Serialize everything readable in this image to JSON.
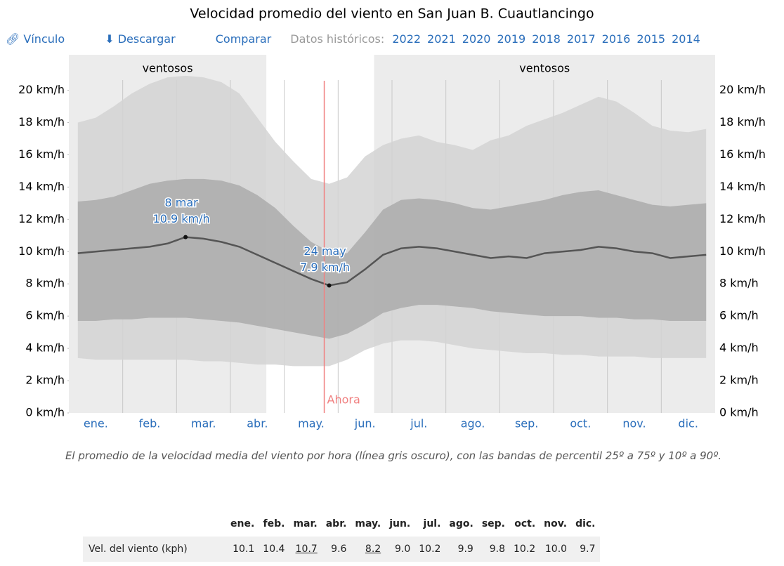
{
  "header": {
    "links": [
      "Vínculo",
      "Descargar",
      "Comparar"
    ],
    "history_label": "Datos históricos:",
    "years": [
      "2022",
      "2021",
      "2020",
      "2019",
      "2018",
      "2017",
      "2016",
      "2015",
      "2014"
    ]
  },
  "chart_data": {
    "type": "line",
    "title": "Velocidad promedio del viento en San Juan B. Cuautlancingo",
    "categories": [
      null,
      "ene.",
      null,
      null,
      "feb.",
      null,
      null,
      "mar.",
      null,
      null,
      "abr.",
      null,
      null,
      "may.",
      null,
      null,
      "jun.",
      null,
      null,
      "jul.",
      null,
      null,
      "ago.",
      null,
      null,
      "sep.",
      null,
      null,
      "oct.",
      null,
      null,
      "nov.",
      null,
      null,
      "dic.",
      null
    ],
    "values": [
      9.9,
      10.0,
      10.1,
      10.2,
      10.3,
      10.5,
      10.9,
      10.8,
      10.6,
      10.3,
      9.8,
      9.3,
      8.8,
      8.3,
      7.9,
      8.1,
      8.9,
      9.8,
      10.2,
      10.3,
      10.2,
      10.0,
      9.8,
      9.6,
      9.7,
      9.6,
      9.9,
      10.0,
      10.1,
      10.3,
      10.2,
      10.0,
      9.9,
      9.6,
      9.7,
      9.8
    ],
    "color": "#555555",
    "bands": [
      {
        "color": "#d4d4d4",
        "low": [
          3.4,
          3.3,
          3.3,
          3.3,
          3.3,
          3.3,
          3.3,
          3.2,
          3.2,
          3.1,
          3.0,
          3.0,
          2.9,
          2.9,
          2.9,
          3.3,
          3.9,
          4.3,
          4.5,
          4.5,
          4.4,
          4.2,
          4.0,
          3.9,
          3.8,
          3.7,
          3.7,
          3.6,
          3.6,
          3.5,
          3.5,
          3.5,
          3.4,
          3.4,
          3.4,
          3.4
        ],
        "high": [
          18.0,
          18.3,
          19.0,
          19.8,
          20.4,
          20.8,
          20.9,
          20.8,
          20.5,
          19.8,
          18.3,
          16.8,
          15.6,
          14.5,
          14.2,
          14.6,
          15.9,
          16.6,
          17.0,
          17.2,
          16.8,
          16.6,
          16.3,
          16.9,
          17.2,
          17.8,
          18.2,
          18.6,
          19.1,
          19.6,
          19.3,
          18.6,
          17.8,
          17.5,
          17.4,
          17.6
        ]
      },
      {
        "color": "#ababab",
        "low": [
          5.7,
          5.7,
          5.8,
          5.8,
          5.9,
          5.9,
          5.9,
          5.8,
          5.7,
          5.6,
          5.4,
          5.2,
          5.0,
          4.8,
          4.6,
          4.9,
          5.5,
          6.2,
          6.5,
          6.7,
          6.7,
          6.6,
          6.5,
          6.3,
          6.2,
          6.1,
          6.0,
          6.0,
          6.0,
          5.9,
          5.9,
          5.8,
          5.8,
          5.7,
          5.7,
          5.7
        ],
        "high": [
          13.1,
          13.2,
          13.4,
          13.8,
          14.2,
          14.4,
          14.5,
          14.5,
          14.4,
          14.1,
          13.5,
          12.7,
          11.6,
          10.6,
          10.0,
          9.9,
          11.2,
          12.6,
          13.2,
          13.3,
          13.2,
          13.0,
          12.7,
          12.6,
          12.8,
          13.0,
          13.2,
          13.5,
          13.7,
          13.8,
          13.5,
          13.2,
          12.9,
          12.8,
          12.9,
          13.0
        ]
      }
    ],
    "ylim": [
      0,
      22.2
    ],
    "yticks": [
      {
        "value": 0,
        "label": "0 km/h"
      },
      {
        "value": 2,
        "label": "2 km/h"
      },
      {
        "value": 4,
        "label": "4 km/h"
      },
      {
        "value": 6,
        "label": "6 km/h"
      },
      {
        "value": 8,
        "label": "8 km/h"
      },
      {
        "value": 10,
        "label": "10 km/h"
      },
      {
        "value": 12,
        "label": "12 km/h"
      },
      {
        "value": 14,
        "label": "14 km/h"
      },
      {
        "value": 16,
        "label": "16 km/h"
      },
      {
        "value": 18,
        "label": "18 km/h"
      },
      {
        "value": 20,
        "label": "20 km/h"
      }
    ],
    "annotations": [
      {
        "label": "8 mar",
        "index": 6,
        "value": 10.9,
        "value_label": "10.9 km/h"
      },
      {
        "label": "24 may",
        "index": 14,
        "value": 7.9,
        "value_label": "7.9 km/h"
      }
    ],
    "now": {
      "label": "Ahora",
      "index": 14,
      "color": "#f08080"
    },
    "shaded": [
      {
        "label": "ventosos",
        "from": 0,
        "to": 10
      },
      {
        "label": "ventosos",
        "from": 17,
        "to": 35
      }
    ]
  },
  "caption": "El promedio de la velocidad media del viento por hora (línea gris oscuro), con las bandas de percentil 25º a 75º y 10º a 90º.",
  "table": {
    "header": [
      "ene.",
      "feb.",
      "mar.",
      "abr.",
      "may.",
      "jun.",
      "jul.",
      "ago.",
      "sep.",
      "oct.",
      "nov.",
      "dic."
    ],
    "rows": [
      [
        "Vel. del viento (kph)",
        "10.1",
        "10.4",
        "10.7",
        "9.6",
        "8.2",
        "9.0",
        "10.2",
        "9.9",
        "9.8",
        "10.2",
        "10.0",
        "9.7"
      ]
    ],
    "underlined": [
      3,
      5
    ]
  }
}
